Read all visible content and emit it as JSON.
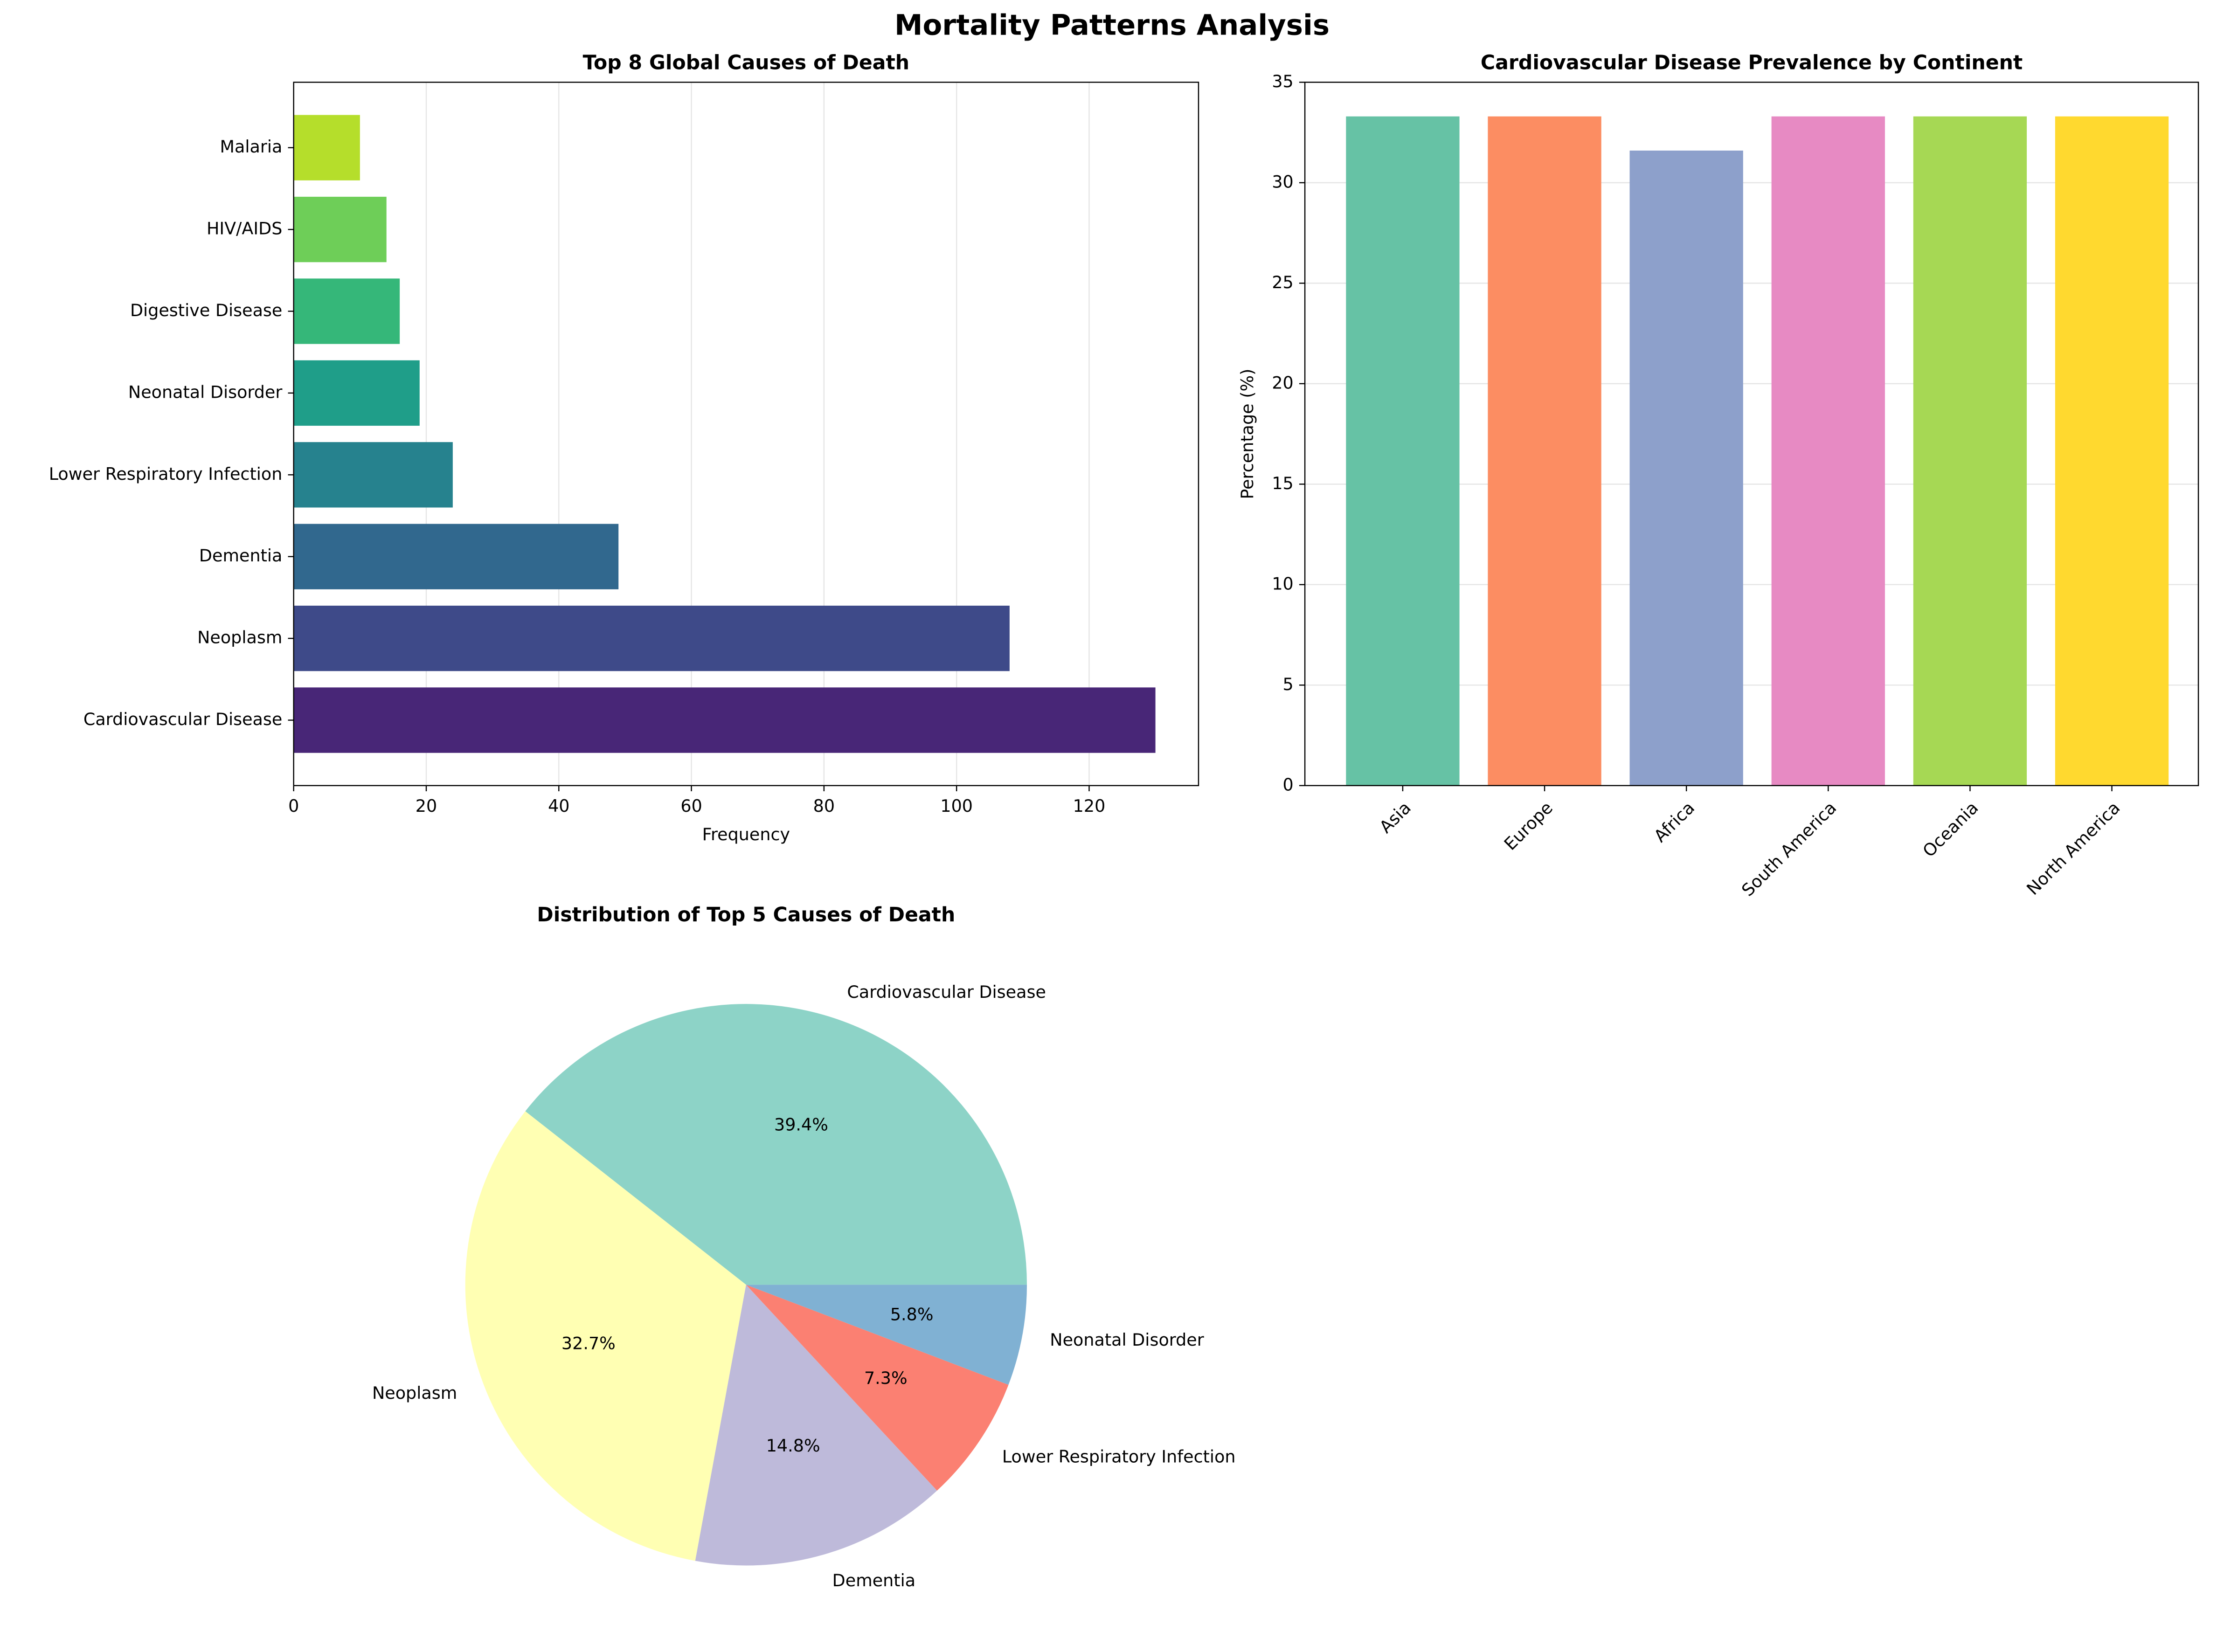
{
  "title": "Mortality Patterns Analysis",
  "chart_data": [
    {
      "type": "barh",
      "title": "Top 8 Global Causes of Death",
      "xlabel": "Frequency",
      "categories": [
        "Cardiovascular Disease",
        "Neoplasm",
        "Dementia",
        "Lower Respiratory Infection",
        "Neonatal Disorder",
        "Digestive Disease",
        "HIV/AIDS",
        "Malaria"
      ],
      "values": [
        130,
        108,
        49,
        24,
        19,
        16,
        14,
        10
      ],
      "colors": [
        "#482677",
        "#3e4a89",
        "#31688e",
        "#26828e",
        "#1f9e89",
        "#35b779",
        "#6ece58",
        "#b5de2b"
      ],
      "xlim": [
        0,
        136.5
      ],
      "xticks": [
        0,
        20,
        40,
        60,
        80,
        100,
        120
      ],
      "grid": true
    },
    {
      "type": "bar",
      "title": "Cardiovascular Disease Prevalence by Continent",
      "ylabel": "Percentage (%)",
      "categories": [
        "Asia",
        "Europe",
        "Africa",
        "South America",
        "Oceania",
        "North America"
      ],
      "values": [
        33.3,
        33.3,
        31.6,
        33.3,
        33.3,
        33.3
      ],
      "colors": [
        "#66c2a5",
        "#fc8d62",
        "#8da0cb",
        "#e78ac3",
        "#a6d854",
        "#ffd92f"
      ],
      "ylim": [
        0,
        35
      ],
      "yticks": [
        0,
        5,
        10,
        15,
        20,
        25,
        30,
        35
      ],
      "grid": true
    },
    {
      "type": "pie",
      "title": "Distribution of Top 5 Causes of Death",
      "categories": [
        "Cardiovascular Disease",
        "Neoplasm",
        "Dementia",
        "Lower Respiratory Infection",
        "Neonatal Disorder"
      ],
      "values": [
        39.4,
        32.7,
        14.8,
        7.3,
        5.8
      ],
      "value_labels": [
        "39.4%",
        "32.7%",
        "14.8%",
        "7.3%",
        "5.8%"
      ],
      "colors": [
        "#8dd3c7",
        "#ffffb3",
        "#bebada",
        "#fb8072",
        "#80b1d3"
      ]
    }
  ]
}
